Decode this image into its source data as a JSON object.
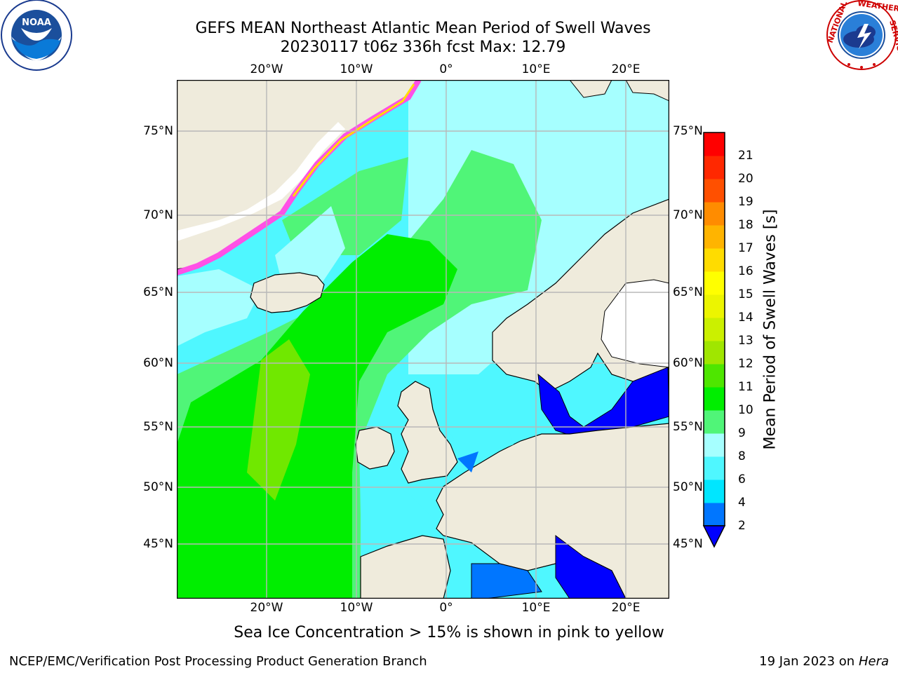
{
  "header": {
    "title_line1": "GEFS MEAN Northeast Atlantic Mean Period of Swell Waves",
    "title_line2": "20230117 t06z 336h fcst   Max: 12.79"
  },
  "logos": {
    "left": {
      "text": "NOAA",
      "ring_text": "NATIONAL OCEANIC AND ATMOSPHERIC ADMINISTRATION · U.S. DEPARTMENT OF COMMERCE",
      "icon": "noaa-logo"
    },
    "right": {
      "ring_text": "NATIONAL WEATHER SERVICE",
      "icon": "nws-logo"
    }
  },
  "map": {
    "lon_labels": [
      "20°W",
      "10°W",
      "0°",
      "10°E",
      "20°E"
    ],
    "lat_labels": [
      "75°N",
      "70°N",
      "65°N",
      "60°N",
      "55°N",
      "50°N",
      "45°N"
    ],
    "colors": {
      "land": "#efebdc",
      "ice_white": "#ffffff",
      "grid": "#b8b8b8"
    }
  },
  "colorbar": {
    "title": "Mean Period of Swell Waves [s]",
    "labels": [
      "2",
      "4",
      "6",
      "8",
      "9",
      "10",
      "11",
      "12",
      "13",
      "14",
      "15",
      "16",
      "17",
      "18",
      "19",
      "20",
      "21"
    ],
    "colors": [
      "#0076ff",
      "#00e6ff",
      "#4ff7ff",
      "#a6ffff",
      "#50f578",
      "#00ee00",
      "#4ee600",
      "#a0e600",
      "#cbf000",
      "#ecf500",
      "#ffff00",
      "#ffdc00",
      "#ffb400",
      "#ff8c00",
      "#ff5000",
      "#ff2800",
      "#ff0000"
    ],
    "extend_color": "#0000ff"
  },
  "footer": {
    "caption": "Sea Ice Concentration > 15% is shown in pink to yellow",
    "credit_left": "NCEP/EMC/Verification Post Processing Product Generation Branch",
    "credit_right_date": "19 Jan 2023 on ",
    "credit_right_host": "Hera"
  }
}
